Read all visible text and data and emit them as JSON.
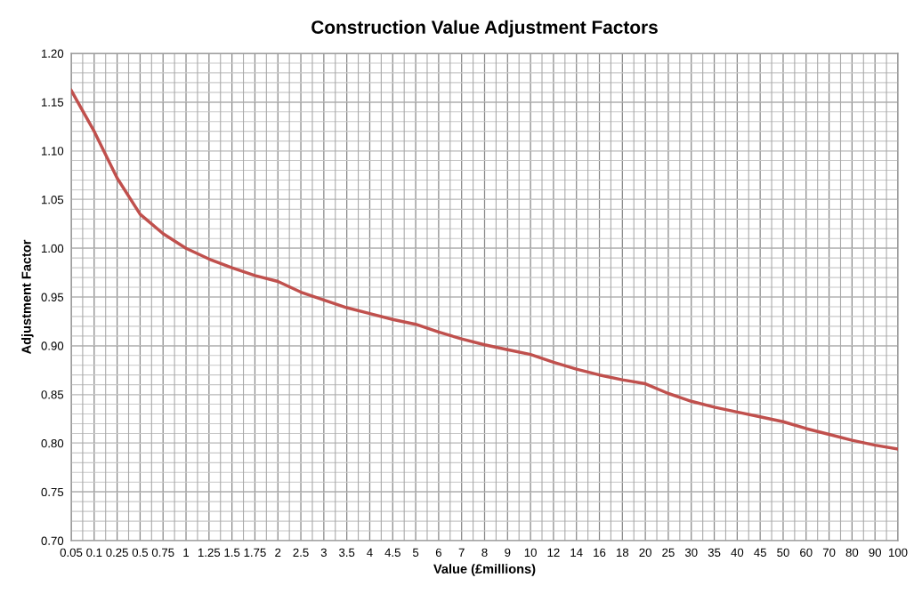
{
  "chart_data": {
    "type": "line",
    "title": "Construction Value Adjustment Factors",
    "xlabel": "Value (£millions)",
    "ylabel": "Adjustment Factor",
    "categories": [
      "0.05",
      "0.1",
      "0.25",
      "0.5",
      "0.75",
      "1",
      "1.25",
      "1.5",
      "1.75",
      "2",
      "2.5",
      "3",
      "3.5",
      "4",
      "4.5",
      "5",
      "6",
      "7",
      "8",
      "9",
      "10",
      "12",
      "14",
      "16",
      "18",
      "20",
      "25",
      "30",
      "35",
      "40",
      "45",
      "50",
      "60",
      "70",
      "80",
      "90",
      "100"
    ],
    "series": [
      {
        "color": "#c0504d",
        "values": [
          1.162,
          1.12,
          1.072,
          1.035,
          1.015,
          1.0,
          0.989,
          0.98,
          0.972,
          0.966,
          0.955,
          0.947,
          0.939,
          0.933,
          0.927,
          0.922,
          0.914,
          0.907,
          0.901,
          0.896,
          0.891,
          0.883,
          0.876,
          0.87,
          0.865,
          0.861,
          0.851,
          0.843,
          0.837,
          0.832,
          0.827,
          0.822,
          0.815,
          0.809,
          0.803,
          0.798,
          0.794
        ]
      }
    ],
    "ylim": [
      0.7,
      1.2
    ],
    "yticks": [
      {
        "value": 0.7,
        "label": "0.70"
      },
      {
        "value": 0.75,
        "label": "0.75"
      },
      {
        "value": 0.8,
        "label": "0.80"
      },
      {
        "value": 0.85,
        "label": "0.85"
      },
      {
        "value": 0.9,
        "label": "0.90"
      },
      {
        "value": 0.95,
        "label": "0.95"
      },
      {
        "value": 1.0,
        "label": "1.00"
      },
      {
        "value": 1.05,
        "label": "1.05"
      },
      {
        "value": 1.1,
        "label": "1.10"
      },
      {
        "value": 1.15,
        "label": "1.15"
      },
      {
        "value": 1.2,
        "label": "1.20"
      }
    ],
    "grid": true,
    "marker": "none",
    "line_style": "solid"
  }
}
